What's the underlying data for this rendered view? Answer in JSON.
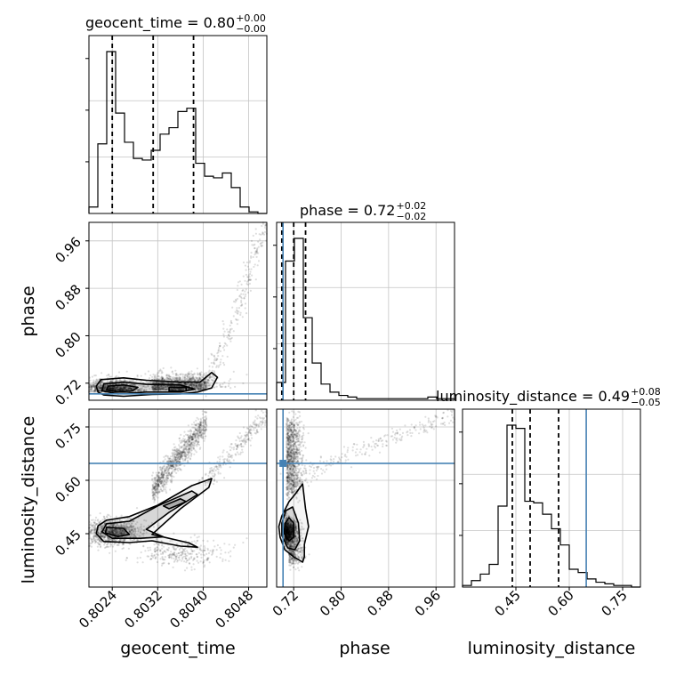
{
  "chart_data": {
    "type": "corner",
    "parameters": [
      "geocent_time",
      "phase",
      "luminosity_distance"
    ],
    "titles": [
      {
        "param": "geocent_time",
        "label": "geocent_time = 0.80",
        "upper": "+0.00",
        "lower": "−0.00"
      },
      {
        "param": "phase",
        "label": "phase = 0.72",
        "upper": "+0.02",
        "lower": "−0.02"
      },
      {
        "param": "luminosity_distance",
        "label": "luminosity_distance = 0.49",
        "upper": "+0.08",
        "lower": "−0.05"
      }
    ],
    "ranges": {
      "geocent_time": [
        0.80199,
        0.80512
      ],
      "phase": [
        0.6912,
        0.9912
      ],
      "luminosity_distance": [
        0.3,
        0.8
      ]
    },
    "ticks": {
      "geocent_time": [
        {
          "v": 0.8024,
          "label": "0.8024"
        },
        {
          "v": 0.8032,
          "label": "0.8032"
        },
        {
          "v": 0.804,
          "label": "0.8040"
        },
        {
          "v": 0.8048,
          "label": "0.8048"
        }
      ],
      "phase": [
        {
          "v": 0.72,
          "label": "0.72"
        },
        {
          "v": 0.8,
          "label": "0.80"
        },
        {
          "v": 0.88,
          "label": "0.88"
        },
        {
          "v": 0.96,
          "label": "0.96"
        }
      ],
      "luminosity_distance": [
        {
          "v": 0.45,
          "label": "0.45"
        },
        {
          "v": 0.6,
          "label": "0.60"
        },
        {
          "v": 0.75,
          "label": "0.75"
        }
      ]
    },
    "quantiles": {
      "geocent_time": [
        0.8024,
        0.80312,
        0.80383
      ],
      "phase": [
        0.7,
        0.72,
        0.74
      ],
      "luminosity_distance": [
        0.44,
        0.49,
        0.57
      ]
    },
    "truths": {
      "geocent_time": null,
      "phase": 0.702,
      "luminosity_distance": 0.6477
    },
    "histograms": {
      "geocent_time": [
        0.04,
        0.43,
        1.0,
        0.62,
        0.44,
        0.34,
        0.33,
        0.39,
        0.49,
        0.53,
        0.63,
        0.65,
        0.31,
        0.23,
        0.22,
        0.25,
        0.16,
        0.04,
        0.01,
        0.0
      ],
      "phase": [
        0.11,
        0.86,
        1.0,
        0.51,
        0.23,
        0.1,
        0.05,
        0.03,
        0.02,
        0.01,
        0.01,
        0.01,
        0.01,
        0.01,
        0.01,
        0.01,
        0.01,
        0.02,
        0.01,
        0.01
      ],
      "luminosity_distance": [
        0.01,
        0.04,
        0.08,
        0.14,
        0.5,
        1.0,
        0.98,
        0.53,
        0.52,
        0.45,
        0.36,
        0.26,
        0.11,
        0.09,
        0.05,
        0.03,
        0.02,
        0.01,
        0.01,
        0.0
      ]
    },
    "grid": true,
    "legend": "none"
  }
}
